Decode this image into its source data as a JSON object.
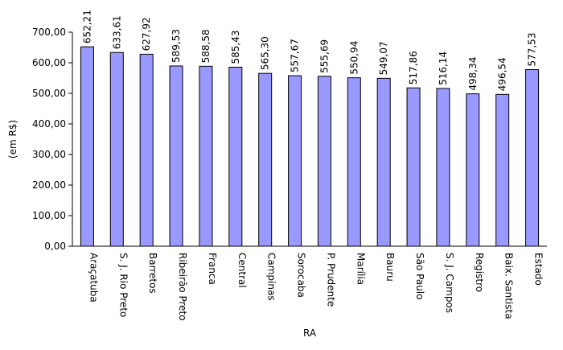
{
  "chart_data": {
    "type": "bar",
    "categories": [
      "Araçatuba",
      "S. J. Rio Preto",
      "Barretos",
      "Ribeirão Preto",
      "Franca",
      "Central",
      "Campinas",
      "Sorocaba",
      "P. Prudente",
      "Marília",
      "Bauru",
      "São Paulo",
      "S. J. Campos",
      "Registro",
      "Baix. Santista",
      "Estado"
    ],
    "values": [
      652.21,
      633.61,
      627.92,
      589.53,
      588.58,
      585.43,
      565.3,
      557.67,
      555.69,
      550.94,
      549.07,
      517.86,
      516.14,
      498.34,
      496.54,
      577.53
    ],
    "value_labels": [
      "652,21",
      "633,61",
      "627,92",
      "589,53",
      "588,58",
      "585,43",
      "565,30",
      "557,67",
      "555,69",
      "550,94",
      "549,07",
      "517,86",
      "516,14",
      "498,34",
      "496,54",
      "577,53"
    ],
    "xlabel": "RA",
    "ylabel": "(em R$)",
    "ylim": [
      0,
      700
    ],
    "yticks": [
      0,
      100,
      200,
      300,
      400,
      500,
      600,
      700
    ],
    "ytick_labels": [
      "0,00",
      "100,00",
      "200,00",
      "300,00",
      "400,00",
      "500,00",
      "600,00",
      "700,00"
    ],
    "grid": false,
    "legend": "none",
    "colors": {
      "bar_fill": "#9999ff",
      "bar_stroke": "#000000",
      "axis": "#000000"
    }
  }
}
